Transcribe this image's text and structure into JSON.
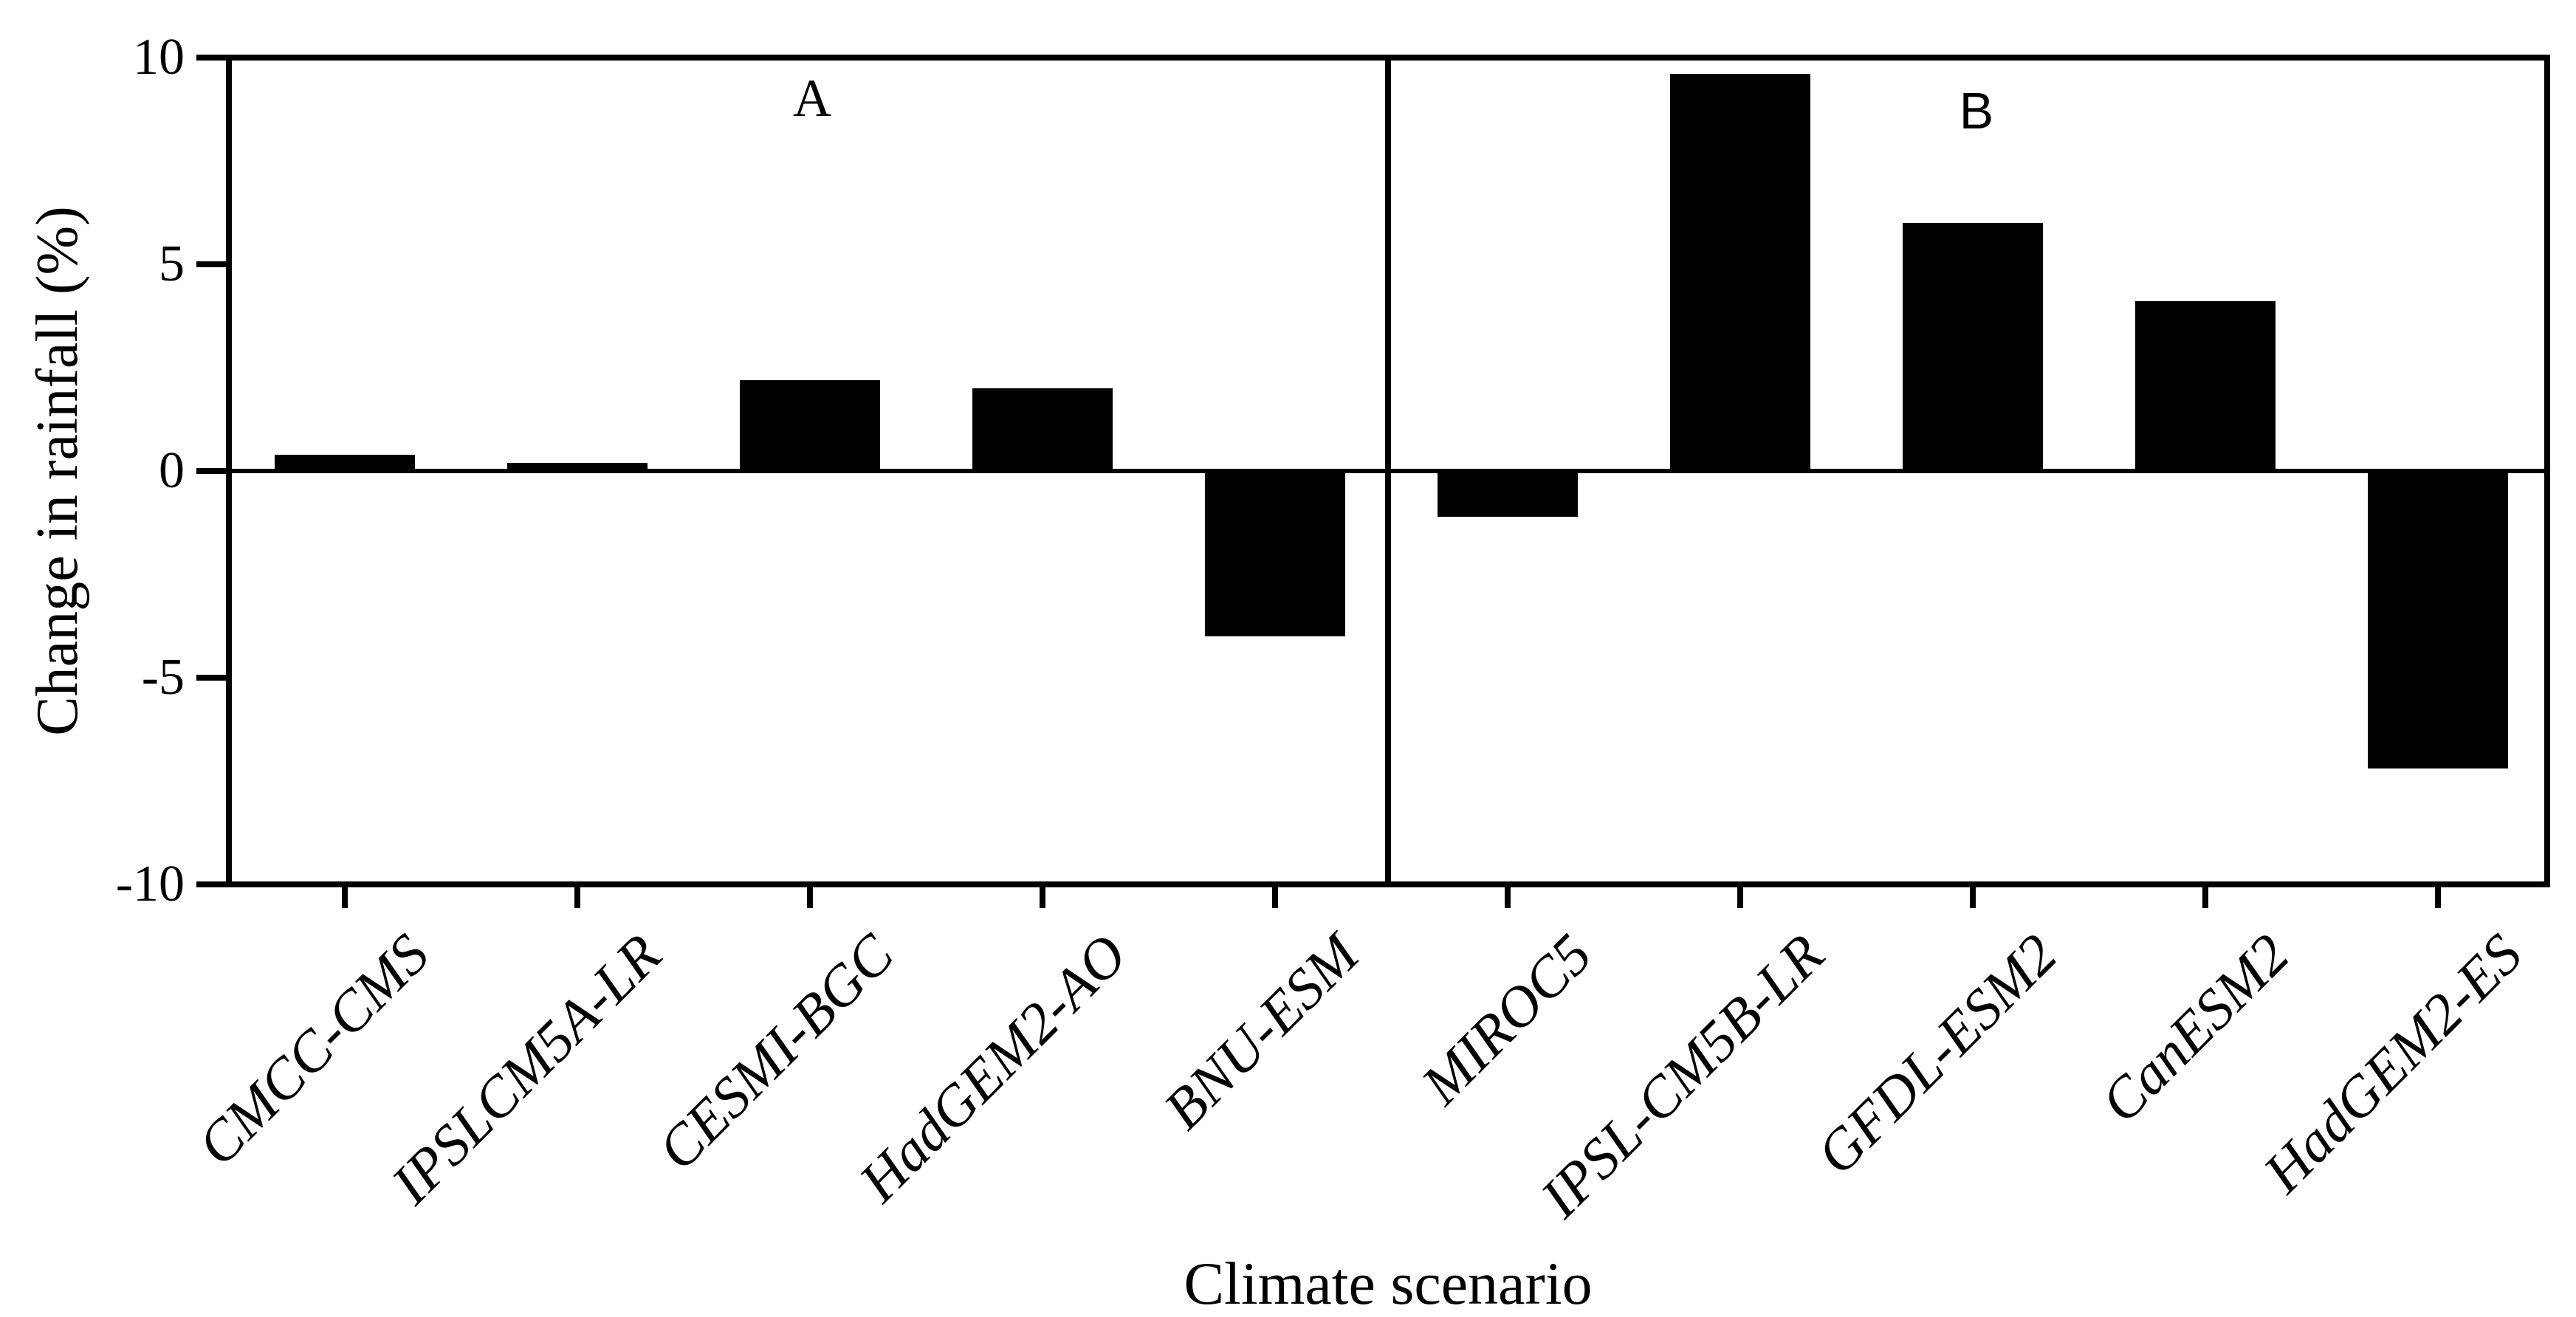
{
  "title_labels": {
    "panel_a": "A",
    "panel_b": "B",
    "y_axis_title": "Change in rainfall (%)",
    "x_axis_title": "Climate scenario"
  },
  "chart_data": {
    "type": "bar",
    "title": "",
    "xlabel": "Climate scenario",
    "ylabel": "Change in rainfall (%)",
    "ylim": [
      -10,
      10
    ],
    "y_ticks": [
      10,
      5,
      0,
      -5,
      -10
    ],
    "y_tick_labels": [
      "10",
      "5",
      "0",
      "-5",
      "-10"
    ],
    "grid": false,
    "legend": false,
    "bar_color": "#000000",
    "background_color": "#ffffff",
    "panels": [
      {
        "label": "A",
        "categories": [
          "CMCC-CMS",
          "IPSLCM5A-LR",
          "CESMI-BGC",
          "HadGEM2-AO",
          "BNU-ESM"
        ],
        "values": [
          0.4,
          0.2,
          2.2,
          2.0,
          -4.0
        ]
      },
      {
        "label": "B",
        "categories": [
          "MIROC5",
          "IPSL-CM5B-LR",
          "GFDL-ESM2",
          "CanESM2",
          "HadGEM2-ES"
        ],
        "values": [
          -1.1,
          9.6,
          6.0,
          4.1,
          -7.2
        ]
      }
    ]
  }
}
